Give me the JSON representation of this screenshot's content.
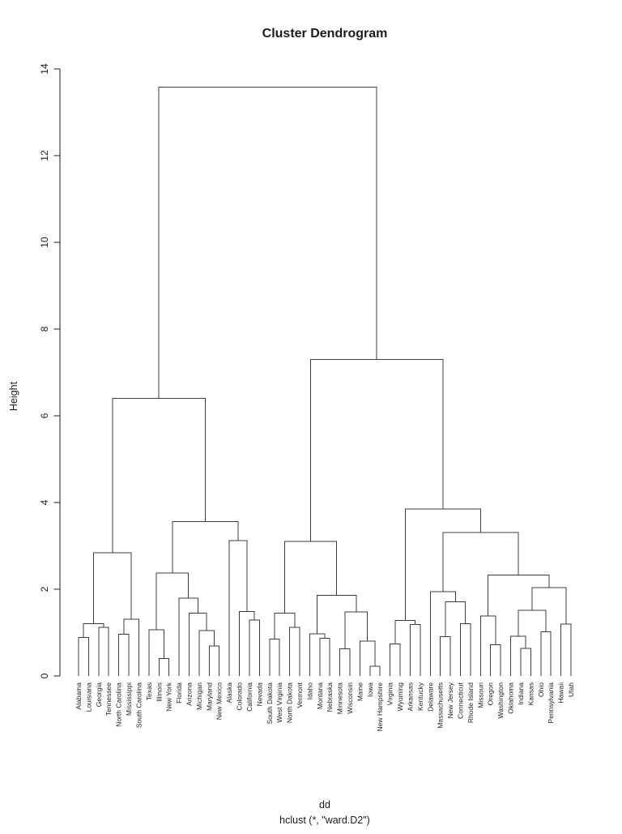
{
  "chart_data": {
    "type": "dendrogram",
    "title": "Cluster Dendrogram",
    "ylabel": "Height",
    "xlabel_line1": "dd",
    "xlabel_line2": "hclust (*, \"ward.D2\")",
    "y_ticks": [
      0,
      2,
      4,
      6,
      8,
      10,
      12,
      14
    ],
    "ylim": [
      0,
      14
    ],
    "line_color": "#3c3c3c",
    "leaves_in_order": [
      "Alabama",
      "Louisiana",
      "Georgia",
      "Tennessee",
      "North Carolina",
      "Mississippi",
      "South Carolina",
      "Texas",
      "Illinois",
      "New York",
      "Florida",
      "Arizona",
      "Michigan",
      "Maryland",
      "New Mexico",
      "Alaska",
      "Colorado",
      "California",
      "Nevada",
      "South Dakota",
      "West Virginia",
      "North Dakota",
      "Vermont",
      "Idaho",
      "Montana",
      "Nebraska",
      "Minnesota",
      "Wisconsin",
      "Maine",
      "Iowa",
      "New Hampshire",
      "Virginia",
      "Wyoming",
      "Arkansas",
      "Kentucky",
      "Delaware",
      "Massachusetts",
      "New Jersey",
      "Connecticut",
      "Rhode Island",
      "Missouri",
      "Oregon",
      "Washington",
      "Oklahoma",
      "Indiana",
      "Kansas",
      "Ohio",
      "Pennsylvania",
      "Hawaii",
      "Utah"
    ],
    "tree": {
      "h": 13.58,
      "c": [
        {
          "h": 6.4,
          "c": [
            {
              "h": 2.84,
              "c": [
                {
                  "h": 1.21,
                  "c": [
                    {
                      "h": 0.89,
                      "c": [
                        "Alabama",
                        "Louisiana"
                      ]
                    },
                    {
                      "h": 1.12,
                      "c": [
                        "Georgia",
                        "Tennessee"
                      ]
                    }
                  ]
                },
                {
                  "h": 1.31,
                  "c": [
                    {
                      "h": 0.96,
                      "c": [
                        "North Carolina",
                        "Mississippi"
                      ]
                    },
                    "South Carolina"
                  ]
                }
              ]
            },
            {
              "h": 3.56,
              "c": [
                {
                  "h": 2.37,
                  "c": [
                    {
                      "h": 1.07,
                      "c": [
                        "Texas",
                        {
                          "h": 0.4,
                          "c": [
                            "Illinois",
                            "New York"
                          ]
                        }
                      ]
                    },
                    {
                      "h": 1.79,
                      "c": [
                        "Florida",
                        {
                          "h": 1.45,
                          "c": [
                            "Arizona",
                            {
                              "h": 1.05,
                              "c": [
                                "Michigan",
                                {
                                  "h": 0.69,
                                  "c": [
                                    "Maryland",
                                    "New Mexico"
                                  ]
                                }
                              ]
                            }
                          ]
                        }
                      ]
                    }
                  ]
                },
                {
                  "h": 3.12,
                  "c": [
                    "Alaska",
                    {
                      "h": 1.49,
                      "c": [
                        "Colorado",
                        {
                          "h": 1.29,
                          "c": [
                            "California",
                            "Nevada"
                          ]
                        }
                      ]
                    }
                  ]
                }
              ]
            }
          ]
        },
        {
          "h": 7.3,
          "c": [
            {
              "h": 3.1,
              "c": [
                {
                  "h": 1.45,
                  "c": [
                    {
                      "h": 0.85,
                      "c": [
                        "South Dakota",
                        "West Virginia"
                      ]
                    },
                    {
                      "h": 1.12,
                      "c": [
                        "North Dakota",
                        "Vermont"
                      ]
                    }
                  ]
                },
                {
                  "h": 1.86,
                  "c": [
                    {
                      "h": 0.97,
                      "c": [
                        "Idaho",
                        {
                          "h": 0.87,
                          "c": [
                            "Montana",
                            "Nebraska"
                          ]
                        }
                      ]
                    },
                    {
                      "h": 1.48,
                      "c": [
                        {
                          "h": 0.63,
                          "c": [
                            "Minnesota",
                            "Wisconsin"
                          ]
                        },
                        {
                          "h": 0.8,
                          "c": [
                            "Maine",
                            {
                              "h": 0.22,
                              "c": [
                                "Iowa",
                                "New Hampshire"
                              ]
                            }
                          ]
                        }
                      ]
                    }
                  ]
                }
              ]
            },
            {
              "h": 3.85,
              "c": [
                {
                  "h": 1.28,
                  "c": [
                    {
                      "h": 0.74,
                      "c": [
                        "Virginia",
                        "Wyoming"
                      ]
                    },
                    {
                      "h": 1.19,
                      "c": [
                        "Arkansas",
                        "Kentucky"
                      ]
                    }
                  ]
                },
                {
                  "h": 3.31,
                  "c": [
                    {
                      "h": 1.94,
                      "c": [
                        "Delaware",
                        {
                          "h": 1.71,
                          "c": [
                            {
                              "h": 0.91,
                              "c": [
                                "Massachusetts",
                                "New Jersey"
                              ]
                            },
                            {
                              "h": 1.21,
                              "c": [
                                "Connecticut",
                                "Rhode Island"
                              ]
                            }
                          ]
                        }
                      ]
                    },
                    {
                      "h": 2.33,
                      "c": [
                        {
                          "h": 1.38,
                          "c": [
                            "Missouri",
                            {
                              "h": 0.72,
                              "c": [
                                "Oregon",
                                "Washington"
                              ]
                            }
                          ]
                        },
                        {
                          "h": 2.04,
                          "c": [
                            {
                              "h": 1.51,
                              "c": [
                                {
                                  "h": 0.92,
                                  "c": [
                                    "Oklahoma",
                                    {
                                      "h": 0.64,
                                      "c": [
                                        "Indiana",
                                        "Kansas"
                                      ]
                                    }
                                  ]
                                },
                                {
                                  "h": 1.02,
                                  "c": [
                                    "Ohio",
                                    "Pennsylvania"
                                  ]
                                }
                              ]
                            },
                            {
                              "h": 1.2,
                              "c": [
                                "Hawaii",
                                "Utah"
                              ]
                            }
                          ]
                        }
                      ]
                    }
                  ]
                }
              ]
            }
          ]
        }
      ]
    }
  }
}
